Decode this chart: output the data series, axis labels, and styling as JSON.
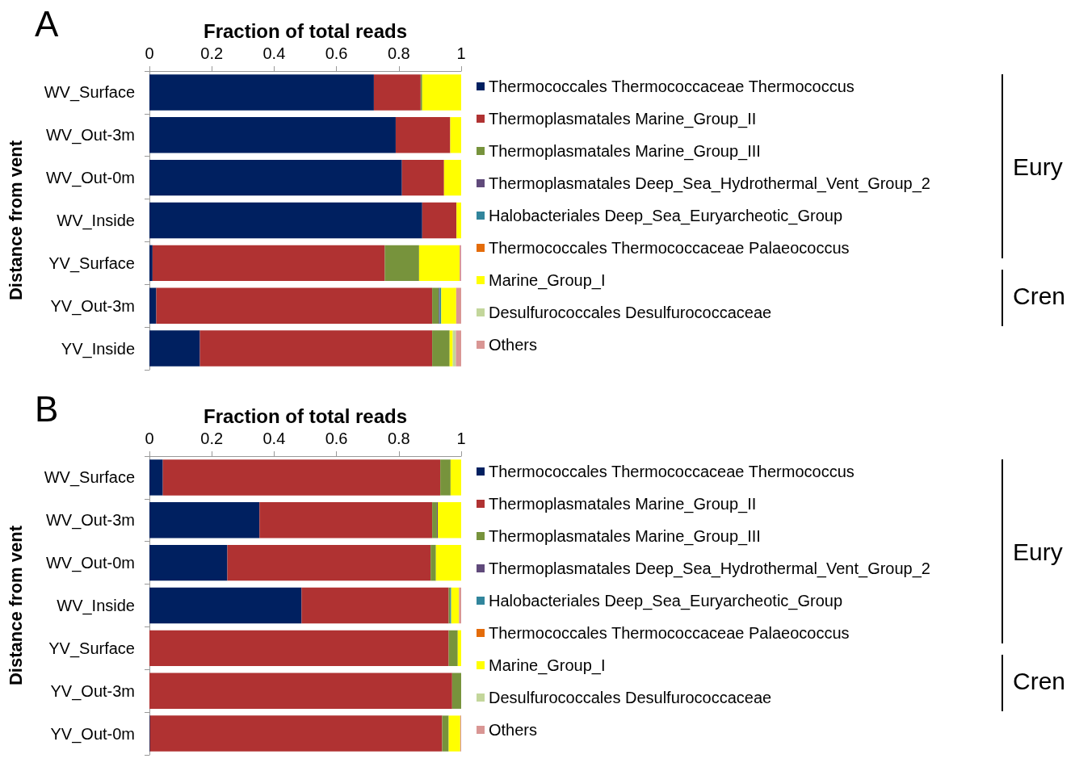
{
  "chart_data": [
    {
      "type": "bar",
      "title": "A",
      "xlabel": "Fraction of total reads",
      "ylabel": "Distance from vent",
      "orientation": "horizontal",
      "stacked": true,
      "legend": "right",
      "grid": false,
      "xlim": [
        0,
        1
      ],
      "xticks": [
        0,
        0.2,
        0.4,
        0.6,
        0.8,
        1
      ],
      "categories": [
        "WV_Surface",
        "WV_Out-3m",
        "WV_Out-0m",
        "WV_Inside",
        "YV_Surface",
        "YV_Out-3m",
        "YV_Inside"
      ],
      "annotations": [
        "Eury",
        "Cren"
      ],
      "series": [
        {
          "name": "Thermococcales Thermococcaceae Thermococcus",
          "color": "#002060",
          "values": [
            0.72,
            0.79,
            0.81,
            0.875,
            0.01,
            0.022,
            0.162
          ]
        },
        {
          "name": "Thermoplasmatales Marine_Group_II",
          "color": "#b03232",
          "values": [
            0.15,
            0.175,
            0.135,
            0.11,
            0.745,
            0.885,
            0.745
          ]
        },
        {
          "name": "Thermoplasmatales Marine_Group_III",
          "color": "#77933c",
          "values": [
            0.005,
            0,
            0,
            0,
            0.11,
            0.021,
            0.056
          ]
        },
        {
          "name": "Thermoplasmatales Deep_Sea_Hydrothermal_Vent_Group_2",
          "color": "#604a7b",
          "values": [
            0,
            0,
            0,
            0,
            0,
            0.003,
            0
          ]
        },
        {
          "name": "Halobacteriales Deep_Sea_Euryarcheotic_Group",
          "color": "#31859c",
          "values": [
            0,
            0,
            0,
            0,
            0,
            0.005,
            0
          ]
        },
        {
          "name": "Thermococcales Thermococcaceae Palaeococcus",
          "color": "#e46c0a",
          "values": [
            0,
            0,
            0,
            0,
            0,
            0,
            0
          ]
        },
        {
          "name": "Marine_Group_I",
          "color": "#ffff00",
          "values": [
            0.125,
            0.035,
            0.055,
            0.015,
            0.13,
            0.048,
            0.01
          ]
        },
        {
          "name": "Desulfurococcales Desulfurococcaceae",
          "color": "#c3d69b",
          "values": [
            0,
            0,
            0,
            0,
            0,
            0,
            0.01
          ]
        },
        {
          "name": "Others",
          "color": "#d99694",
          "values": [
            0,
            0,
            0,
            0,
            0.005,
            0.016,
            0.017
          ]
        }
      ]
    },
    {
      "type": "bar",
      "title": "B",
      "xlabel": "Fraction of total reads",
      "ylabel": "Distance from vent",
      "orientation": "horizontal",
      "stacked": true,
      "legend": "right",
      "grid": false,
      "xlim": [
        0,
        1
      ],
      "xticks": [
        0,
        0.2,
        0.4,
        0.6,
        0.8,
        1
      ],
      "categories": [
        "WV_Surface",
        "WV_Out-3m",
        "WV_Out-0m",
        "WV_Inside",
        "YV_Surface",
        "YV_Out-3m",
        "YV_Out-0m"
      ],
      "annotations": [
        "Eury",
        "Cren"
      ],
      "series": [
        {
          "name": "Thermococcales Thermococcaceae Thermococcus",
          "color": "#002060",
          "values": [
            0.043,
            0.353,
            0.25,
            0.488,
            0,
            0,
            0.002
          ]
        },
        {
          "name": "Thermoplasmatales Marine_Group_II",
          "color": "#b03232",
          "values": [
            0.89,
            0.554,
            0.652,
            0.472,
            0.96,
            0.971,
            0.937
          ]
        },
        {
          "name": "Thermoplasmatales Marine_Group_III",
          "color": "#77933c",
          "values": [
            0.033,
            0.015,
            0.017,
            0.004,
            0.029,
            0.029,
            0.021
          ]
        },
        {
          "name": "Thermoplasmatales Deep_Sea_Hydrothermal_Vent_Group_2",
          "color": "#604a7b",
          "values": [
            0,
            0.003,
            0,
            0,
            0,
            0,
            0
          ]
        },
        {
          "name": "Halobacteriales Deep_Sea_Euryarcheotic_Group",
          "color": "#31859c",
          "values": [
            0,
            0,
            0,
            0.004,
            0,
            0,
            0
          ]
        },
        {
          "name": "Thermococcales Thermococcaceae Palaeococcus",
          "color": "#e46c0a",
          "values": [
            0,
            0,
            0,
            0,
            0,
            0,
            0
          ]
        },
        {
          "name": "Marine_Group_I",
          "color": "#ffff00",
          "values": [
            0.034,
            0.075,
            0.081,
            0.025,
            0.011,
            0,
            0.037
          ]
        },
        {
          "name": "Desulfurococcales Desulfurococcaceae",
          "color": "#c3d69b",
          "values": [
            0,
            0,
            0,
            0,
            0,
            0,
            0
          ]
        },
        {
          "name": "Others",
          "color": "#d99694",
          "values": [
            0,
            0,
            0,
            0.007,
            0,
            0,
            0.003
          ]
        }
      ]
    }
  ]
}
